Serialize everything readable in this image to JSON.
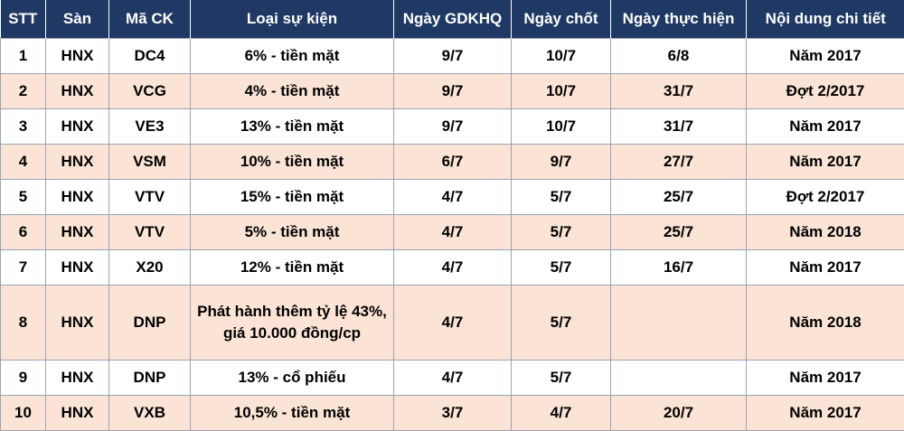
{
  "headers": [
    "STT",
    "Sàn",
    "Mã CK",
    "Loại sự kiện",
    "Ngày GDKHQ",
    "Ngày chốt",
    "Ngày thực hiện",
    "Nội dung chi tiết"
  ],
  "rows": [
    {
      "stt": "1",
      "san": "HNX",
      "ma_ck": "DC4",
      "loai_su_kien": "6% - tiền mặt",
      "ngay_gdkhq": "9/7",
      "ngay_chot": "10/7",
      "ngay_thuc_hien": "6/8",
      "noi_dung": "Năm 2017"
    },
    {
      "stt": "2",
      "san": "HNX",
      "ma_ck": "VCG",
      "loai_su_kien": "4% - tiền mặt",
      "ngay_gdkhq": "9/7",
      "ngay_chot": "10/7",
      "ngay_thuc_hien": "31/7",
      "noi_dung": "Đợt 2/2017"
    },
    {
      "stt": "3",
      "san": "HNX",
      "ma_ck": "VE3",
      "loai_su_kien": "13% - tiền mặt",
      "ngay_gdkhq": "9/7",
      "ngay_chot": "10/7",
      "ngay_thuc_hien": "31/7",
      "noi_dung": "Năm 2017"
    },
    {
      "stt": "4",
      "san": "HNX",
      "ma_ck": "VSM",
      "loai_su_kien": "10% - tiền mặt",
      "ngay_gdkhq": "6/7",
      "ngay_chot": "9/7",
      "ngay_thuc_hien": "27/7",
      "noi_dung": "Năm 2017"
    },
    {
      "stt": "5",
      "san": "HNX",
      "ma_ck": "VTV",
      "loai_su_kien": "15% - tiền mặt",
      "ngay_gdkhq": "4/7",
      "ngay_chot": "5/7",
      "ngay_thuc_hien": "25/7",
      "noi_dung": "Đợt 2/2017"
    },
    {
      "stt": "6",
      "san": "HNX",
      "ma_ck": "VTV",
      "loai_su_kien": "5% - tiền mặt",
      "ngay_gdkhq": "4/7",
      "ngay_chot": "5/7",
      "ngay_thuc_hien": "25/7",
      "noi_dung": "Năm 2018"
    },
    {
      "stt": "7",
      "san": "HNX",
      "ma_ck": "X20",
      "loai_su_kien": "12% - tiền mặt",
      "ngay_gdkhq": "4/7",
      "ngay_chot": "5/7",
      "ngay_thuc_hien": "16/7",
      "noi_dung": "Năm 2017"
    },
    {
      "stt": "8",
      "san": "HNX",
      "ma_ck": "DNP",
      "loai_su_kien": "Phát hành thêm tỷ lệ 43%, giá 10.000 đồng/cp",
      "ngay_gdkhq": "4/7",
      "ngay_chot": "5/7",
      "ngay_thuc_hien": "",
      "noi_dung": "Năm 2018"
    },
    {
      "stt": "9",
      "san": "HNX",
      "ma_ck": "DNP",
      "loai_su_kien": "13% - cổ phiếu",
      "ngay_gdkhq": "4/7",
      "ngay_chot": "5/7",
      "ngay_thuc_hien": "",
      "noi_dung": "Năm 2017"
    },
    {
      "stt": "10",
      "san": "HNX",
      "ma_ck": "VXB",
      "loai_su_kien": "10,5% - tiền mặt",
      "ngay_gdkhq": "3/7",
      "ngay_chot": "4/7",
      "ngay_thuc_hien": "20/7",
      "noi_dung": "Năm 2017"
    }
  ]
}
